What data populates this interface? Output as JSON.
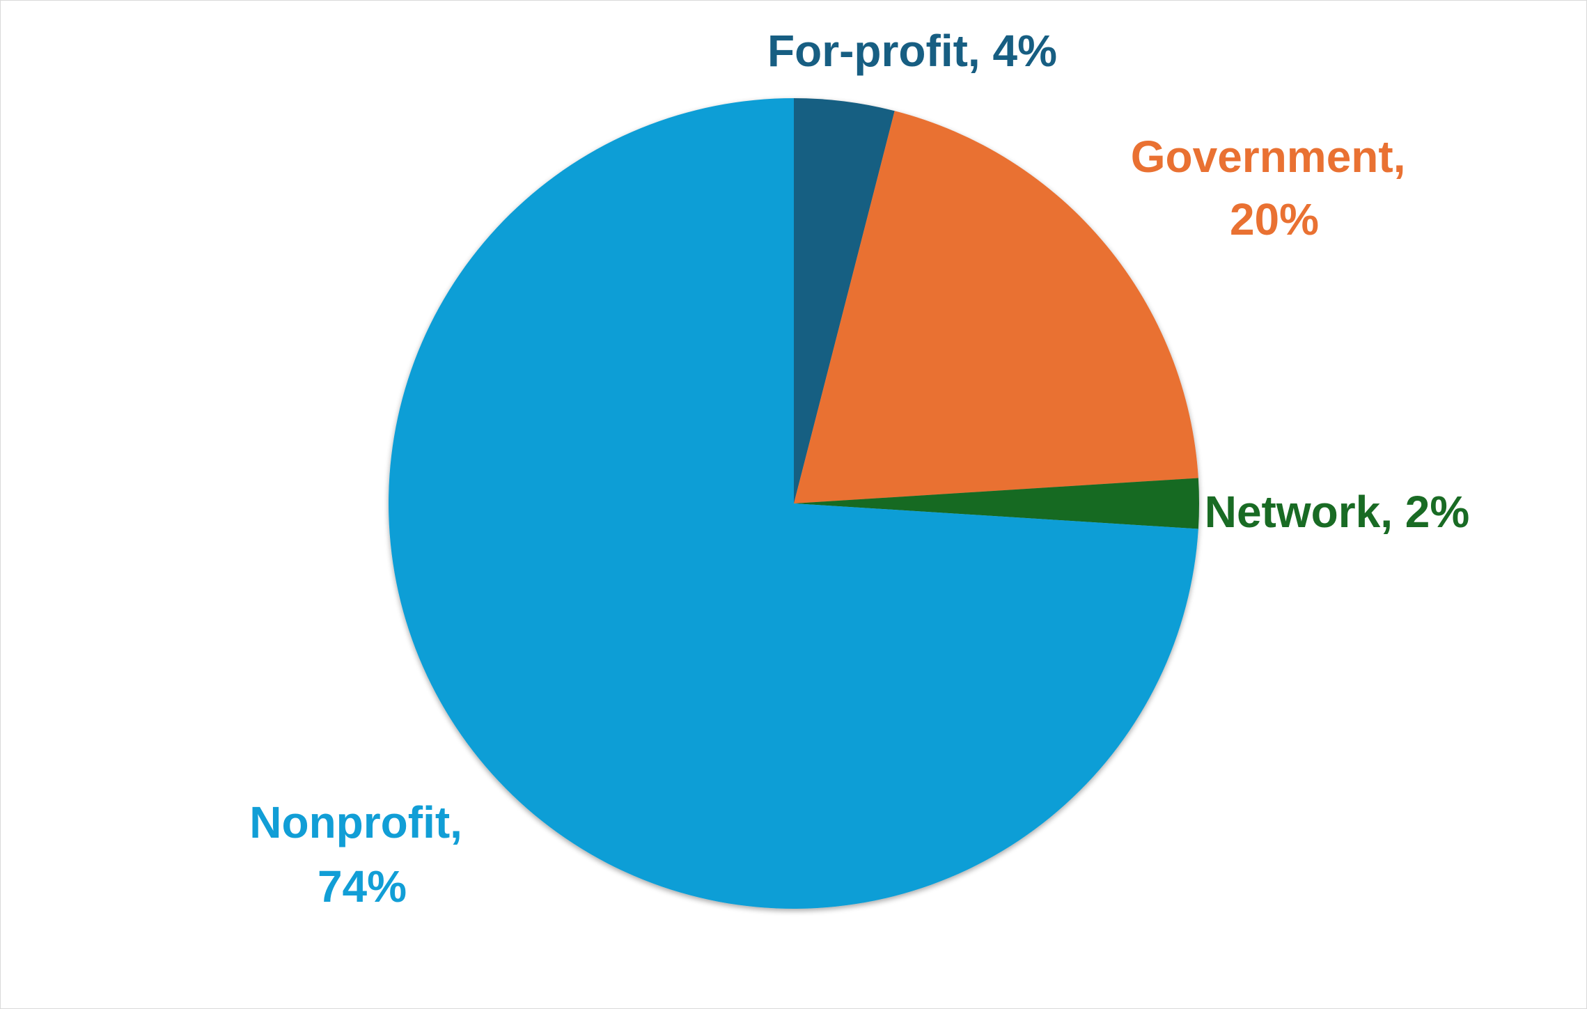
{
  "chart_data": {
    "type": "pie",
    "start_angle": "12 o'clock",
    "direction": "clockwise",
    "legend": "none",
    "slices": [
      {
        "category": "For-profit",
        "value": 4,
        "color": "#175e82",
        "label_line1": "For-profit, 4%",
        "label_line2": ""
      },
      {
        "category": "Government",
        "value": 20,
        "color": "#e97132",
        "label_line1": "Government,",
        "label_line2": "20%"
      },
      {
        "category": "Network",
        "value": 2,
        "color": "#196b24",
        "label_line1": "Network, 2%",
        "label_line2": ""
      },
      {
        "category": "Nonprofit",
        "value": 74,
        "color": "#119ed6",
        "label_line1": "Nonprofit,",
        "label_line2": "74%"
      }
    ]
  }
}
